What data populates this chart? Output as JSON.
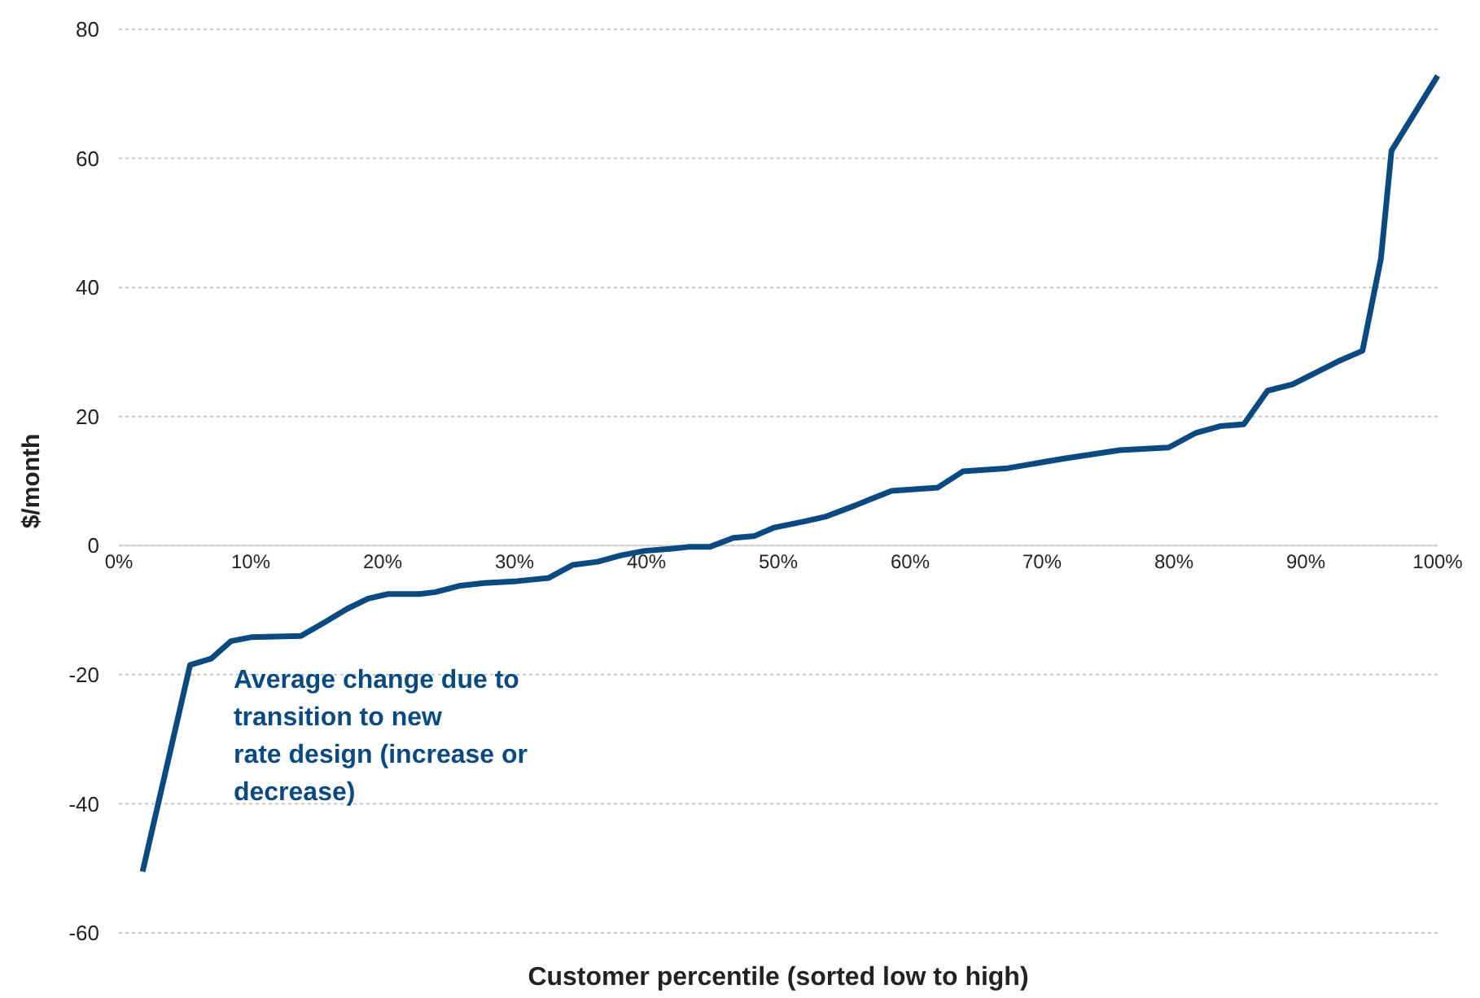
{
  "chart_data": {
    "type": "line",
    "xlabel": "Customer percentile (sorted low to high)",
    "ylabel": "$/month",
    "xlim": [
      0,
      100
    ],
    "xticks": [
      {
        "value": 0,
        "label": "0%"
      },
      {
        "value": 10,
        "label": "10%"
      },
      {
        "value": 20,
        "label": "20%"
      },
      {
        "value": 30,
        "label": "30%"
      },
      {
        "value": 40,
        "label": "40%"
      },
      {
        "value": 50,
        "label": "50%"
      },
      {
        "value": 60,
        "label": "60%"
      },
      {
        "value": 70,
        "label": "70%"
      },
      {
        "value": 80,
        "label": "80%"
      },
      {
        "value": 90,
        "label": "90%"
      },
      {
        "value": 100,
        "label": "100%"
      }
    ],
    "ylim": [
      -60,
      80
    ],
    "yticks": [
      -60,
      -40,
      -20,
      0,
      20,
      40,
      60,
      80
    ],
    "grid": "y",
    "legend": false,
    "marker": "none",
    "line_style": "solid",
    "annotations": [
      "Average change due to\ntransition to new\nrate design (increase or\ndecrease)"
    ],
    "series": [
      {
        "color": "#0b4a80",
        "x": [
          1.8,
          5.4,
          7.0,
          8.5,
          10,
          13.8,
          15.5,
          17.3,
          18.9,
          20.4,
          22.8,
          24,
          25.9,
          27.7,
          30.2,
          32.6,
          34.4,
          36.3,
          38.1,
          39.9,
          41.8,
          43.2,
          44.8,
          46.6,
          48.2,
          49.7,
          52.1,
          53.6,
          55.8,
          57,
          58.6,
          62.1,
          64,
          67.4,
          71.7,
          75.9,
          79.6,
          81.7,
          83.5,
          85.3,
          87.1,
          89,
          92.4,
          94.3,
          95.7,
          96.5,
          100
        ],
        "values": [
          -50.5,
          -18.5,
          -17.5,
          -14.8,
          -14.2,
          -14,
          -12,
          -9.8,
          -8.2,
          -7.5,
          -7.5,
          -7.2,
          -6.2,
          -5.8,
          -5.5,
          -5,
          -3,
          -2.5,
          -1.5,
          -0.8,
          -0.5,
          -0.2,
          -0.2,
          1.2,
          1.5,
          2.8,
          3.8,
          4.5,
          6.2,
          7.2,
          8.5,
          9,
          11.5,
          12,
          13.5,
          14.8,
          15.2,
          17.5,
          18.5,
          18.8,
          24,
          25,
          28.5,
          30.2,
          44.5,
          61.2,
          72.8
        ]
      }
    ]
  }
}
